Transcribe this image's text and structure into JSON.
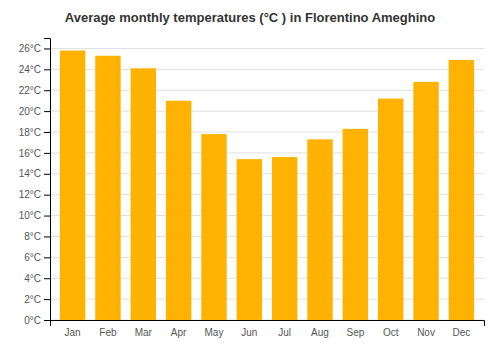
{
  "chart_data": {
    "type": "bar",
    "title": "Average monthly temperatures (°C ) in Florentino Ameghino",
    "categories": [
      "Jan",
      "Feb",
      "Mar",
      "Apr",
      "May",
      "Jun",
      "Jul",
      "Aug",
      "Sep",
      "Oct",
      "Nov",
      "Dec"
    ],
    "values": [
      25.8,
      25.3,
      24.1,
      21.0,
      17.8,
      15.4,
      15.6,
      17.3,
      18.3,
      21.2,
      22.8,
      24.9
    ],
    "color": "#FFB300",
    "ylim": [
      0,
      27
    ],
    "yticks": [
      {
        "value": 0,
        "label": "0°C"
      },
      {
        "value": 2,
        "label": "2°C"
      },
      {
        "value": 4,
        "label": "4°C"
      },
      {
        "value": 6,
        "label": "6°C"
      },
      {
        "value": 8,
        "label": "8°C"
      },
      {
        "value": 10,
        "label": "10°C"
      },
      {
        "value": 12,
        "label": "12°C"
      },
      {
        "value": 14,
        "label": "14°C"
      },
      {
        "value": 16,
        "label": "16°C"
      },
      {
        "value": 18,
        "label": "18°C"
      },
      {
        "value": 20,
        "label": "20°C"
      },
      {
        "value": 22,
        "label": "22°C"
      },
      {
        "value": 24,
        "label": "24°C"
      },
      {
        "value": 26,
        "label": "26°C"
      }
    ],
    "grid": true
  }
}
